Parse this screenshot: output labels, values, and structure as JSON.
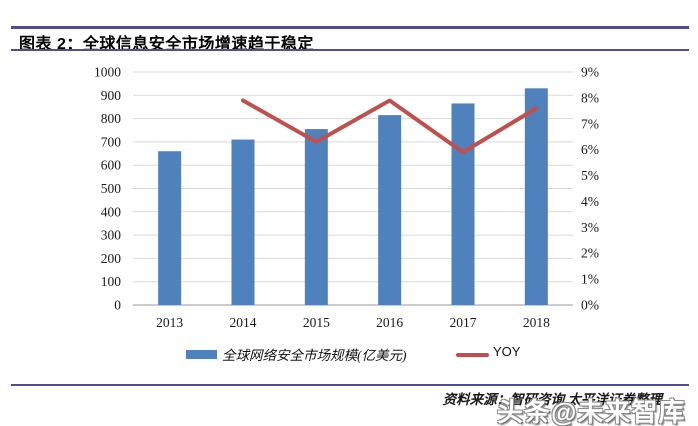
{
  "header": {
    "title": "图表 2：全球信息安全市场增速趋于稳定"
  },
  "chart_data": {
    "type": "bar",
    "categories": [
      "2013",
      "2014",
      "2015",
      "2016",
      "2017",
      "2018"
    ],
    "series": [
      {
        "name": "全球网络安全市场规模(亿美元)",
        "type": "bar",
        "axis": "left",
        "values": [
          660,
          710,
          755,
          815,
          865,
          930
        ]
      },
      {
        "name": "YOY",
        "type": "line",
        "axis": "right",
        "unit": "%",
        "values": [
          null,
          7.9,
          6.3,
          7.9,
          5.9,
          7.6
        ]
      }
    ],
    "left_axis": {
      "min": 0,
      "max": 1000,
      "step": 100,
      "tick_labels": [
        "0",
        "100",
        "200",
        "300",
        "400",
        "500",
        "600",
        "700",
        "800",
        "900",
        "1000"
      ]
    },
    "right_axis": {
      "min": 0,
      "max": 9,
      "step": 1,
      "tick_labels": [
        "0%",
        "1%",
        "2%",
        "3%",
        "4%",
        "5%",
        "6%",
        "7%",
        "8%",
        "9%"
      ]
    },
    "grid": true,
    "legend_position": "bottom"
  },
  "legend": {
    "bar_label": "全球网络安全市场规模(亿美元)",
    "line_label": "YOY"
  },
  "footer": {
    "source": "资料来源：智研咨询 太平洋证券整理",
    "watermark": "头条@未来智库"
  },
  "colors": {
    "bar": "#4F81BD",
    "line": "#C0504D",
    "rule": "#4D4D99",
    "gridline": "#D9D9D9",
    "axis_line": "#999999",
    "tick_text": "#1A1A1A"
  }
}
